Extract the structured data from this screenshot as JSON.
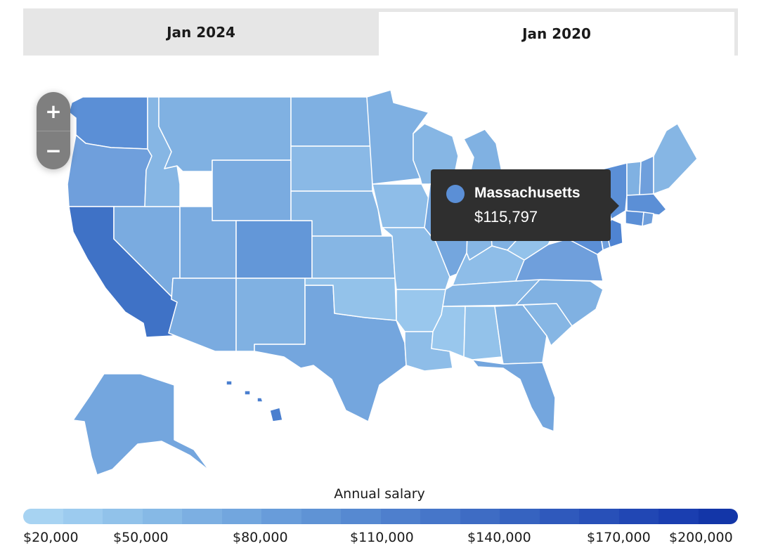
{
  "tabs": [
    {
      "label": "Jan 2024",
      "active": false
    },
    {
      "label": "Jan 2020",
      "active": true
    }
  ],
  "zoom": {
    "in_label": "+",
    "out_label": "−"
  },
  "tooltip": {
    "state": "Massachusetts",
    "value": "$115,797",
    "color": "#5b8fd6"
  },
  "legend": {
    "title": "Annual salary",
    "ticks": [
      "$20,000",
      "$50,000",
      "$80,000",
      "$110,000",
      "$140,000",
      "$170,000",
      "$200,000"
    ],
    "colors": [
      "#a7d3f2",
      "#9ccbef",
      "#91c2ea",
      "#86b9e6",
      "#7cafe2",
      "#72a6de",
      "#689cda",
      "#5f93d5",
      "#5689d1",
      "#4e7fcd",
      "#4676c9",
      "#3e6cc4",
      "#3663c0",
      "#2f59bc",
      "#2850b8",
      "#2147b4",
      "#1a3eb0",
      "#1336a8"
    ]
  },
  "map": {
    "states": [
      {
        "name": "Washington",
        "color": "#5b8fd6"
      },
      {
        "name": "Oregon",
        "color": "#6f9fdc"
      },
      {
        "name": "California",
        "color": "#3f72c6"
      },
      {
        "name": "Nevada",
        "color": "#7aabe0"
      },
      {
        "name": "Idaho",
        "color": "#86b6e4"
      },
      {
        "name": "Montana",
        "color": "#80b1e2"
      },
      {
        "name": "Wyoming",
        "color": "#7aabe0"
      },
      {
        "name": "Utah",
        "color": "#7aabe0"
      },
      {
        "name": "Colorado",
        "color": "#6397d8"
      },
      {
        "name": "Arizona",
        "color": "#7aabe0"
      },
      {
        "name": "New Mexico",
        "color": "#80b1e2"
      },
      {
        "name": "Texas",
        "color": "#74a6de"
      },
      {
        "name": "North Dakota",
        "color": "#7fb0e2"
      },
      {
        "name": "South Dakota",
        "color": "#8ab9e6"
      },
      {
        "name": "Nebraska",
        "color": "#86b6e4"
      },
      {
        "name": "Kansas",
        "color": "#86b6e4"
      },
      {
        "name": "Oklahoma",
        "color": "#93c2ea"
      },
      {
        "name": "Minnesota",
        "color": "#7fb0e2"
      },
      {
        "name": "Iowa",
        "color": "#8ebde8"
      },
      {
        "name": "Missouri",
        "color": "#8ebde8"
      },
      {
        "name": "Arkansas",
        "color": "#99c7ed"
      },
      {
        "name": "Louisiana",
        "color": "#8ebde8"
      },
      {
        "name": "Wisconsin",
        "color": "#86b6e4"
      },
      {
        "name": "Illinois",
        "color": "#74a6de"
      },
      {
        "name": "Michigan",
        "color": "#80b1e2"
      },
      {
        "name": "Indiana",
        "color": "#86b6e4"
      },
      {
        "name": "Ohio",
        "color": "#80b1e2"
      },
      {
        "name": "Kentucky",
        "color": "#8ebde8"
      },
      {
        "name": "Tennessee",
        "color": "#86b6e4"
      },
      {
        "name": "Mississippi",
        "color": "#99c7ed"
      },
      {
        "name": "Alabama",
        "color": "#93c2ea"
      },
      {
        "name": "Georgia",
        "color": "#80b1e2"
      },
      {
        "name": "Florida",
        "color": "#74a6de"
      },
      {
        "name": "South Carolina",
        "color": "#86b6e4"
      },
      {
        "name": "North Carolina",
        "color": "#80b1e2"
      },
      {
        "name": "Virginia",
        "color": "#6f9fdc"
      },
      {
        "name": "West Virginia",
        "color": "#93c2ea"
      },
      {
        "name": "Pennsylvania",
        "color": "#7aabe0"
      },
      {
        "name": "New York",
        "color": "#5b8fd6"
      },
      {
        "name": "Vermont",
        "color": "#80b1e2"
      },
      {
        "name": "New Hampshire",
        "color": "#6f9fdc"
      },
      {
        "name": "Maine",
        "color": "#86b6e4"
      },
      {
        "name": "Massachusetts",
        "color": "#5b8fd6"
      },
      {
        "name": "Connecticut",
        "color": "#5b8fd6"
      },
      {
        "name": "Rhode Island",
        "color": "#6f9fdc"
      },
      {
        "name": "New Jersey",
        "color": "#4f84d2"
      },
      {
        "name": "Delaware",
        "color": "#6f9fdc"
      },
      {
        "name": "Maryland",
        "color": "#5b8fd6"
      },
      {
        "name": "Alaska",
        "color": "#74a6de"
      },
      {
        "name": "Hawaii",
        "color": "#4a7fcf"
      }
    ]
  }
}
